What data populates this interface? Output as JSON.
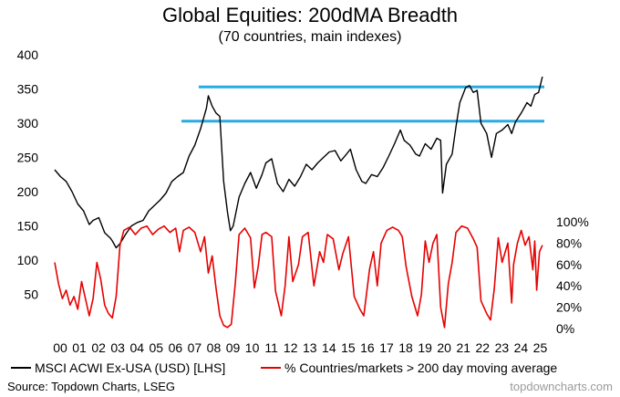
{
  "chart_data": {
    "type": "line",
    "title": "Global Equities: 200dMA Breadth",
    "subtitle": "(70 countries, main indexes)",
    "x_ticks": [
      "00",
      "01",
      "02",
      "03",
      "04",
      "05",
      "06",
      "07",
      "08",
      "09",
      "10",
      "11",
      "12",
      "13",
      "14",
      "15",
      "16",
      "17",
      "18",
      "19",
      "20",
      "21",
      "22",
      "23",
      "24",
      "25"
    ],
    "x_range": [
      2000.0,
      2025.5
    ],
    "left_axis": {
      "ticks": [
        50,
        100,
        150,
        200,
        250,
        300,
        350,
        400
      ],
      "ylim": [
        0,
        400
      ]
    },
    "right_axis": {
      "ticks": [
        "0%",
        "20%",
        "40%",
        "60%",
        "80%",
        "100%"
      ],
      "ylim": [
        0,
        100
      ]
    },
    "series": [
      {
        "name": "MSCI ACWI Ex-USA (USD) [LHS]",
        "axis": "left",
        "color": "#000000",
        "points": [
          [
            2000.0,
            232
          ],
          [
            2000.3,
            222
          ],
          [
            2000.6,
            215
          ],
          [
            2000.9,
            200
          ],
          [
            2001.2,
            182
          ],
          [
            2001.5,
            172
          ],
          [
            2001.8,
            152
          ],
          [
            2002.0,
            158
          ],
          [
            2002.3,
            162
          ],
          [
            2002.6,
            140
          ],
          [
            2002.9,
            132
          ],
          [
            2003.0,
            128
          ],
          [
            2003.2,
            118
          ],
          [
            2003.4,
            124
          ],
          [
            2003.7,
            138
          ],
          [
            2004.0,
            150
          ],
          [
            2004.3,
            155
          ],
          [
            2004.6,
            158
          ],
          [
            2004.9,
            172
          ],
          [
            2005.2,
            180
          ],
          [
            2005.5,
            188
          ],
          [
            2005.8,
            198
          ],
          [
            2006.1,
            215
          ],
          [
            2006.4,
            222
          ],
          [
            2006.7,
            228
          ],
          [
            2007.0,
            252
          ],
          [
            2007.3,
            268
          ],
          [
            2007.6,
            292
          ],
          [
            2007.9,
            322
          ],
          [
            2008.0,
            340
          ],
          [
            2008.2,
            325
          ],
          [
            2008.4,
            315
          ],
          [
            2008.6,
            310
          ],
          [
            2008.8,
            215
          ],
          [
            2009.0,
            170
          ],
          [
            2009.15,
            143
          ],
          [
            2009.3,
            150
          ],
          [
            2009.6,
            192
          ],
          [
            2009.9,
            212
          ],
          [
            2010.2,
            228
          ],
          [
            2010.5,
            205
          ],
          [
            2010.8,
            225
          ],
          [
            2011.0,
            242
          ],
          [
            2011.3,
            248
          ],
          [
            2011.6,
            212
          ],
          [
            2011.9,
            200
          ],
          [
            2012.2,
            218
          ],
          [
            2012.5,
            208
          ],
          [
            2012.8,
            222
          ],
          [
            2013.1,
            240
          ],
          [
            2013.4,
            232
          ],
          [
            2013.7,
            242
          ],
          [
            2014.0,
            250
          ],
          [
            2014.3,
            258
          ],
          [
            2014.6,
            260
          ],
          [
            2014.9,
            245
          ],
          [
            2015.2,
            255
          ],
          [
            2015.4,
            262
          ],
          [
            2015.7,
            232
          ],
          [
            2016.0,
            215
          ],
          [
            2016.2,
            212
          ],
          [
            2016.5,
            225
          ],
          [
            2016.8,
            222
          ],
          [
            2017.1,
            235
          ],
          [
            2017.4,
            252
          ],
          [
            2017.7,
            270
          ],
          [
            2018.0,
            290
          ],
          [
            2018.2,
            275
          ],
          [
            2018.5,
            268
          ],
          [
            2018.8,
            255
          ],
          [
            2019.0,
            252
          ],
          [
            2019.3,
            270
          ],
          [
            2019.6,
            262
          ],
          [
            2019.9,
            278
          ],
          [
            2020.1,
            275
          ],
          [
            2020.2,
            198
          ],
          [
            2020.4,
            240
          ],
          [
            2020.7,
            255
          ],
          [
            2020.9,
            295
          ],
          [
            2021.1,
            330
          ],
          [
            2021.4,
            352
          ],
          [
            2021.6,
            355
          ],
          [
            2021.8,
            345
          ],
          [
            2022.0,
            348
          ],
          [
            2022.2,
            300
          ],
          [
            2022.5,
            285
          ],
          [
            2022.75,
            250
          ],
          [
            2023.0,
            285
          ],
          [
            2023.3,
            290
          ],
          [
            2023.6,
            298
          ],
          [
            2023.8,
            285
          ],
          [
            2024.0,
            302
          ],
          [
            2024.3,
            315
          ],
          [
            2024.6,
            330
          ],
          [
            2024.8,
            325
          ],
          [
            2025.0,
            342
          ],
          [
            2025.2,
            345
          ],
          [
            2025.4,
            368
          ]
        ]
      },
      {
        "name": "% Countries/markets > 200 day moving average",
        "axis": "right",
        "color": "#e60000",
        "points": [
          [
            2000.0,
            62
          ],
          [
            2000.2,
            42
          ],
          [
            2000.4,
            28
          ],
          [
            2000.6,
            36
          ],
          [
            2000.8,
            22
          ],
          [
            2001.0,
            30
          ],
          [
            2001.2,
            18
          ],
          [
            2001.4,
            44
          ],
          [
            2001.6,
            28
          ],
          [
            2001.8,
            12
          ],
          [
            2002.0,
            28
          ],
          [
            2002.2,
            62
          ],
          [
            2002.4,
            46
          ],
          [
            2002.6,
            22
          ],
          [
            2002.8,
            14
          ],
          [
            2003.0,
            10
          ],
          [
            2003.2,
            30
          ],
          [
            2003.4,
            78
          ],
          [
            2003.6,
            92
          ],
          [
            2003.9,
            95
          ],
          [
            2004.2,
            88
          ],
          [
            2004.5,
            94
          ],
          [
            2004.8,
            96
          ],
          [
            2005.1,
            88
          ],
          [
            2005.4,
            93
          ],
          [
            2005.7,
            96
          ],
          [
            2006.0,
            90
          ],
          [
            2006.3,
            94
          ],
          [
            2006.5,
            72
          ],
          [
            2006.7,
            92
          ],
          [
            2007.0,
            95
          ],
          [
            2007.3,
            90
          ],
          [
            2007.6,
            72
          ],
          [
            2007.8,
            86
          ],
          [
            2008.0,
            52
          ],
          [
            2008.2,
            68
          ],
          [
            2008.4,
            38
          ],
          [
            2008.6,
            12
          ],
          [
            2008.8,
            3
          ],
          [
            2009.0,
            1
          ],
          [
            2009.2,
            4
          ],
          [
            2009.4,
            42
          ],
          [
            2009.6,
            88
          ],
          [
            2009.9,
            94
          ],
          [
            2010.2,
            85
          ],
          [
            2010.4,
            38
          ],
          [
            2010.6,
            58
          ],
          [
            2010.8,
            88
          ],
          [
            2011.0,
            90
          ],
          [
            2011.3,
            86
          ],
          [
            2011.5,
            35
          ],
          [
            2011.8,
            12
          ],
          [
            2012.0,
            40
          ],
          [
            2012.2,
            86
          ],
          [
            2012.4,
            44
          ],
          [
            2012.7,
            60
          ],
          [
            2012.9,
            86
          ],
          [
            2013.2,
            90
          ],
          [
            2013.5,
            40
          ],
          [
            2013.8,
            72
          ],
          [
            2014.0,
            62
          ],
          [
            2014.2,
            88
          ],
          [
            2014.5,
            84
          ],
          [
            2014.8,
            55
          ],
          [
            2015.0,
            70
          ],
          [
            2015.3,
            86
          ],
          [
            2015.6,
            30
          ],
          [
            2015.9,
            18
          ],
          [
            2016.1,
            12
          ],
          [
            2016.4,
            56
          ],
          [
            2016.6,
            72
          ],
          [
            2016.8,
            40
          ],
          [
            2017.0,
            80
          ],
          [
            2017.3,
            92
          ],
          [
            2017.6,
            95
          ],
          [
            2017.9,
            92
          ],
          [
            2018.1,
            86
          ],
          [
            2018.3,
            58
          ],
          [
            2018.6,
            30
          ],
          [
            2018.9,
            12
          ],
          [
            2019.1,
            32
          ],
          [
            2019.3,
            82
          ],
          [
            2019.5,
            62
          ],
          [
            2019.7,
            80
          ],
          [
            2019.9,
            88
          ],
          [
            2020.1,
            20
          ],
          [
            2020.3,
            1
          ],
          [
            2020.5,
            42
          ],
          [
            2020.7,
            62
          ],
          [
            2020.9,
            90
          ],
          [
            2021.2,
            96
          ],
          [
            2021.5,
            94
          ],
          [
            2021.8,
            84
          ],
          [
            2022.0,
            76
          ],
          [
            2022.2,
            26
          ],
          [
            2022.5,
            14
          ],
          [
            2022.7,
            8
          ],
          [
            2022.9,
            38
          ],
          [
            2023.1,
            85
          ],
          [
            2023.3,
            62
          ],
          [
            2023.6,
            80
          ],
          [
            2023.8,
            24
          ],
          [
            2023.9,
            60
          ],
          [
            2024.1,
            80
          ],
          [
            2024.3,
            92
          ],
          [
            2024.5,
            78
          ],
          [
            2024.7,
            86
          ],
          [
            2024.9,
            55
          ],
          [
            2025.0,
            82
          ],
          [
            2025.1,
            36
          ],
          [
            2025.25,
            72
          ],
          [
            2025.4,
            78
          ]
        ]
      }
    ],
    "reference_lines": [
      {
        "y": 353,
        "from": 2007.5,
        "to": 2025.5,
        "color": "#29abe2"
      },
      {
        "y": 303,
        "from": 2006.6,
        "to": 2025.5,
        "color": "#29abe2"
      }
    ],
    "grid": false,
    "legend_position": "bottom"
  },
  "footer": {
    "source": "Source: Topdown Charts, LSEG",
    "watermark": "topdowncharts.com"
  },
  "icons": [
    "legend-swatch-black",
    "legend-swatch-red"
  ]
}
